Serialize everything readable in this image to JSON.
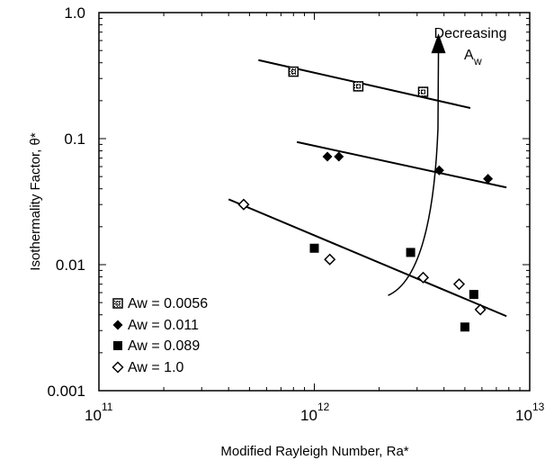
{
  "chart_data": {
    "type": "scatter",
    "title": "",
    "xlabel": "Modified Rayleigh Number, Ra*",
    "ylabel": "Isothermality  Factor, θ*",
    "x_scale": "log",
    "y_scale": "log",
    "xlim": [
      100000000000.0,
      10000000000000.0
    ],
    "ylim": [
      0.001,
      1.0
    ],
    "x_ticks": [
      {
        "value": 100000000000.0,
        "base": "10",
        "exp": "11"
      },
      {
        "value": 1000000000000.0,
        "base": "10",
        "exp": "12"
      },
      {
        "value": 10000000000000.0,
        "base": "10",
        "exp": "13"
      }
    ],
    "y_ticks": [
      {
        "value": 1.0,
        "label": "1.0"
      },
      {
        "value": 0.1,
        "label": "0.1"
      },
      {
        "value": 0.01,
        "label": "0.01"
      },
      {
        "value": 0.001,
        "label": "0.001"
      }
    ],
    "grid": false,
    "legend_position": "bottom-left",
    "series": [
      {
        "name": "Aw = 0.0056",
        "marker": "square-dotted",
        "points": [
          [
            800000000000.0,
            0.34
          ],
          [
            1600000000000.0,
            0.26
          ],
          [
            3200000000000.0,
            0.235
          ]
        ],
        "fit": [
          [
            550000000000.0,
            0.42
          ],
          [
            5300000000000.0,
            0.175
          ]
        ]
      },
      {
        "name": "Aw = 0.011",
        "marker": "diamond-filled",
        "points": [
          [
            1150000000000.0,
            0.072
          ],
          [
            1300000000000.0,
            0.072
          ],
          [
            3800000000000.0,
            0.056
          ],
          [
            6400000000000.0,
            0.048
          ]
        ],
        "fit": [
          [
            830000000000.0,
            0.094
          ],
          [
            7800000000000.0,
            0.041
          ]
        ]
      },
      {
        "name": "Aw = 0.089",
        "marker": "square-filled",
        "points": [
          [
            1000000000000.0,
            0.0135
          ],
          [
            2800000000000.0,
            0.0125
          ],
          [
            5500000000000.0,
            0.0058
          ],
          [
            5000000000000.0,
            0.0032
          ]
        ],
        "fit": null
      },
      {
        "name": "Aw = 1.0",
        "marker": "diamond-open",
        "points": [
          [
            470000000000.0,
            0.03
          ],
          [
            1180000000000.0,
            0.011
          ],
          [
            3200000000000.0,
            0.0079
          ],
          [
            4700000000000.0,
            0.007
          ],
          [
            5900000000000.0,
            0.0044
          ]
        ],
        "fit": [
          [
            400000000000.0,
            0.033
          ],
          [
            7800000000000.0,
            0.0039
          ]
        ]
      }
    ],
    "annotation": {
      "line1": "Decreasing",
      "line2": "A",
      "sub": "w",
      "arrow_path": [
        [
          2200000000000.0,
          0.0057
        ],
        [
          3000000000000.0,
          0.0072
        ],
        [
          3600000000000.0,
          0.02
        ],
        [
          3750000000000.0,
          0.12
        ],
        [
          3770000000000.0,
          0.62
        ]
      ]
    }
  }
}
